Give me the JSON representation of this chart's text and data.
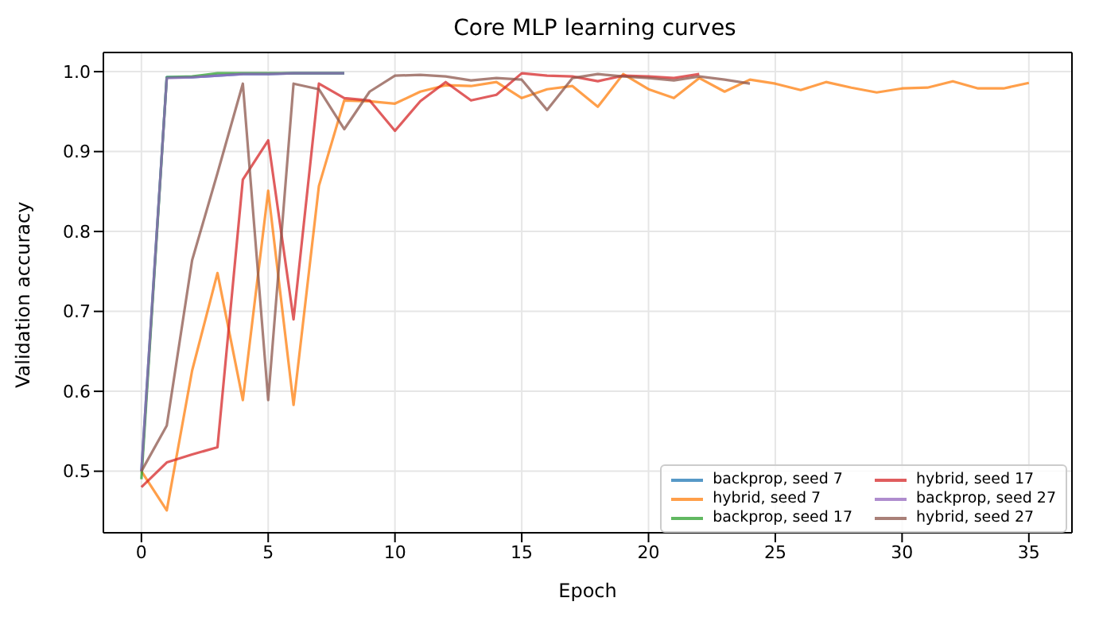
{
  "chart_data": {
    "type": "line",
    "title": "Core MLP learning curves",
    "xlabel": "Epoch",
    "ylabel": "Validation accuracy",
    "series": [
      {
        "name": "backprop, seed 7",
        "color": "#1f77b4",
        "x": [
          0,
          1,
          2,
          3,
          4,
          5,
          6,
          7,
          8
        ],
        "values": [
          0.5,
          0.993,
          0.993,
          0.995,
          0.997,
          0.997,
          0.998,
          0.998,
          0.998
        ]
      },
      {
        "name": "hybrid, seed 7",
        "color": "#ff7f0e",
        "x": [
          0,
          1,
          2,
          3,
          4,
          5,
          6,
          7,
          8,
          9,
          10,
          11,
          12,
          13,
          14,
          15,
          16,
          17,
          18,
          19,
          20,
          21,
          22,
          23,
          24,
          25,
          26,
          27,
          28,
          29,
          30,
          31,
          32,
          33,
          34,
          35
        ],
        "values": [
          0.5,
          0.451,
          0.626,
          0.748,
          0.589,
          0.851,
          0.583,
          0.857,
          0.964,
          0.963,
          0.96,
          0.975,
          0.983,
          0.982,
          0.987,
          0.967,
          0.978,
          0.982,
          0.956,
          0.997,
          0.978,
          0.967,
          0.992,
          0.975,
          0.99,
          0.985,
          0.977,
          0.987,
          0.98,
          0.974,
          0.979,
          0.98,
          0.988,
          0.979,
          0.979,
          0.986
        ]
      },
      {
        "name": "backprop, seed 17",
        "color": "#2ca02c",
        "x": [
          0,
          1,
          2,
          3,
          4,
          5,
          6,
          7,
          8
        ],
        "values": [
          0.49,
          0.993,
          0.994,
          0.998,
          0.998,
          0.998,
          0.998,
          0.998,
          0.998
        ]
      },
      {
        "name": "hybrid, seed 17",
        "color": "#d62728",
        "x": [
          0,
          1,
          2,
          3,
          4,
          5,
          6,
          7,
          8,
          9,
          10,
          11,
          12,
          13,
          14,
          15,
          16,
          17,
          18,
          19,
          20,
          21,
          22
        ],
        "values": [
          0.48,
          0.511,
          0.521,
          0.53,
          0.865,
          0.914,
          0.69,
          0.985,
          0.967,
          0.964,
          0.926,
          0.963,
          0.987,
          0.964,
          0.971,
          0.998,
          0.995,
          0.994,
          0.988,
          0.995,
          0.994,
          0.992,
          0.997
        ]
      },
      {
        "name": "backprop, seed 27",
        "color": "#9467bd",
        "x": [
          0,
          1,
          2,
          3,
          4,
          5,
          6,
          7,
          8
        ],
        "values": [
          0.5,
          0.992,
          0.993,
          0.995,
          0.997,
          0.997,
          0.998,
          0.998,
          0.998
        ]
      },
      {
        "name": "hybrid, seed 27",
        "color": "#8c564b",
        "x": [
          0,
          1,
          2,
          3,
          4,
          5,
          6,
          7,
          8,
          9,
          10,
          11,
          12,
          13,
          14,
          15,
          16,
          17,
          18,
          19,
          20,
          21,
          22,
          23,
          24
        ],
        "values": [
          0.5,
          0.557,
          0.764,
          0.873,
          0.985,
          0.589,
          0.985,
          0.978,
          0.928,
          0.975,
          0.995,
          0.996,
          0.994,
          0.989,
          0.992,
          0.99,
          0.952,
          0.992,
          0.997,
          0.994,
          0.992,
          0.989,
          0.994,
          0.99,
          0.985
        ]
      }
    ],
    "xlim": [
      -1.5,
      36.7
    ],
    "xticks": [
      0,
      5,
      10,
      15,
      20,
      25,
      30,
      35
    ],
    "ylim": [
      0.423,
      1.024
    ],
    "yticks": [
      0.5,
      0.6,
      0.7,
      0.8,
      0.9,
      {
        "value": 1,
        "label": "1.0"
      }
    ],
    "grid": true,
    "legend": "bottom right",
    "line_style": "solid",
    "marker": "none"
  }
}
